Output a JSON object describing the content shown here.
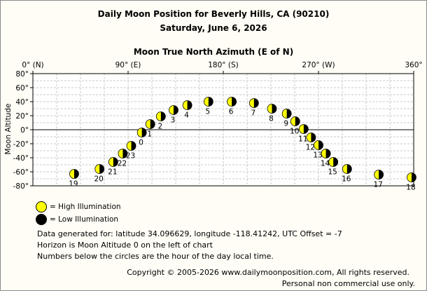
{
  "title": "Daily Moon Position for Beverly Hills, CA (90210)",
  "subtitle": "Saturday, June 6, 2026",
  "chart_data": {
    "type": "scatter",
    "title": "Daily Moon Position for Beverly Hills, CA (90210)",
    "subtitle": "Saturday, June 6, 2026",
    "xlabel": "Moon True North Azimuth (E of N)",
    "ylabel": "Moon Altitude",
    "xlim": [
      0,
      360
    ],
    "ylim": [
      -80,
      80
    ],
    "x_ticks": [
      {
        "value": 0,
        "label": "0° (N)"
      },
      {
        "value": 90,
        "label": "90° (E)"
      },
      {
        "value": 180,
        "label": "180° (S)"
      },
      {
        "value": 270,
        "label": "270° (W)"
      },
      {
        "value": 360,
        "label": "360°"
      }
    ],
    "y_ticks": [
      {
        "value": 80,
        "label": "80°"
      },
      {
        "value": 60,
        "label": "60°"
      },
      {
        "value": 40,
        "label": "40°"
      },
      {
        "value": 20,
        "label": "20°"
      },
      {
        "value": 0,
        "label": "0°"
      },
      {
        "value": -20,
        "label": "-20°"
      },
      {
        "value": -40,
        "label": "-40°"
      },
      {
        "value": -60,
        "label": "-60°"
      },
      {
        "value": -80,
        "label": "-80°"
      }
    ],
    "grid": true,
    "points": [
      {
        "hour": "0",
        "az": 103,
        "alt": -4
      },
      {
        "hour": "1",
        "az": 111,
        "alt": 8
      },
      {
        "hour": "2",
        "az": 121,
        "alt": 19
      },
      {
        "hour": "3",
        "az": 133,
        "alt": 28
      },
      {
        "hour": "4",
        "az": 146,
        "alt": 35
      },
      {
        "hour": "5",
        "az": 166,
        "alt": 40
      },
      {
        "hour": "6",
        "az": 188,
        "alt": 40
      },
      {
        "hour": "7",
        "az": 209,
        "alt": 38
      },
      {
        "hour": "8",
        "az": 226,
        "alt": 30
      },
      {
        "hour": "9",
        "az": 240,
        "alt": 23
      },
      {
        "hour": "10",
        "az": 248,
        "alt": 12
      },
      {
        "hour": "11",
        "az": 256,
        "alt": 1
      },
      {
        "hour": "12",
        "az": 263,
        "alt": -11
      },
      {
        "hour": "13",
        "az": 270,
        "alt": -22
      },
      {
        "hour": "14",
        "az": 277,
        "alt": -34
      },
      {
        "hour": "15",
        "az": 284,
        "alt": -46
      },
      {
        "hour": "16",
        "az": 297,
        "alt": -56
      },
      {
        "hour": "17",
        "az": 327,
        "alt": -64
      },
      {
        "hour": "18",
        "az": 358,
        "alt": -68
      },
      {
        "hour": "19",
        "az": 39,
        "alt": -63
      },
      {
        "hour": "20",
        "az": 63,
        "alt": -56
      },
      {
        "hour": "21",
        "az": 76,
        "alt": -46
      },
      {
        "hour": "22",
        "az": 85,
        "alt": -34
      },
      {
        "hour": "23",
        "az": 93,
        "alt": -23
      }
    ]
  },
  "legend": {
    "high": "= High Illumination",
    "low": "= Low Illumination"
  },
  "info": {
    "line1": "Data generated for: latitude 34.096629, longitude -118.41242, UTC Offset = -7",
    "line2": "Horizon is Moon Altitude 0 on the left of chart",
    "line3": "Numbers below the circles are the hour of the day local time."
  },
  "copyright": {
    "line1": "Copyright © 2005-2026 www.dailymoonposition.com, All rights reserved.",
    "line2": "Personal non commercial use only."
  },
  "colors": {
    "moon_lit": "#ffff00",
    "moon_dark": "#000000",
    "grid": "#c8c8c8",
    "background": "#fffdf5"
  }
}
